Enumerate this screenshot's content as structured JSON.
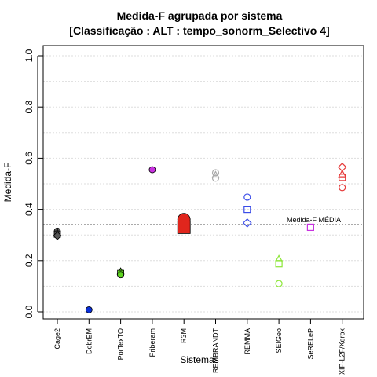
{
  "chart_data": {
    "type": "scatter",
    "title": [
      "Medida-F agrupada por sistema",
      "[Classificação : ALT : tempo_sonorm_Selectivo 4]"
    ],
    "xlabel": "Sistemas",
    "ylabel": "Medida-F",
    "ylim": [
      0,
      1
    ],
    "yticks": [
      "0.0",
      "0.2",
      "0.4",
      "0.6",
      "0.8",
      "1.0"
    ],
    "grid": true,
    "categories": [
      "Cage2",
      "DobrEM",
      "PorTexTO",
      "Priberam",
      "R3M",
      "REMBRANDT",
      "REMMA",
      "SEIGeo",
      "SeRELeP",
      "XIP-L2F/Xerox"
    ],
    "reference_line": {
      "value": 0.34,
      "label": "Medida-F MÉDIA"
    },
    "points": [
      {
        "category": "Cage2",
        "y": 0.315,
        "shape": "circle",
        "color": "#555555",
        "filled": true,
        "size": 4
      },
      {
        "category": "Cage2",
        "y": 0.307,
        "shape": "triangle",
        "color": "#555555",
        "filled": true,
        "size": 4
      },
      {
        "category": "Cage2",
        "y": 0.303,
        "shape": "square",
        "color": "#555555",
        "filled": true,
        "size": 4
      },
      {
        "category": "Cage2",
        "y": 0.297,
        "shape": "diamond",
        "color": "#555555",
        "filled": true,
        "size": 4
      },
      {
        "category": "DobrEM",
        "y": 0.008,
        "shape": "circle",
        "color": "#0a2fd6",
        "filled": true,
        "size": 4
      },
      {
        "category": "PorTexTO",
        "y": 0.157,
        "shape": "triangle",
        "color": "#5fd620",
        "filled": true,
        "size": 4
      },
      {
        "category": "PorTexTO",
        "y": 0.15,
        "shape": "square",
        "color": "#5fd620",
        "filled": true,
        "size": 4
      },
      {
        "category": "PorTexTO",
        "y": 0.145,
        "shape": "circle",
        "color": "#5fd620",
        "filled": true,
        "size": 4
      },
      {
        "category": "Priberam",
        "y": 0.555,
        "shape": "circle",
        "color": "#c832e0",
        "filled": true,
        "size": 4
      },
      {
        "category": "R3M",
        "y": 0.36,
        "shape": "circle",
        "color": "#e0261d",
        "filled": true,
        "size": 8
      },
      {
        "category": "R3M",
        "y": 0.33,
        "shape": "square",
        "color": "#e0261d",
        "filled": true,
        "size": 8
      },
      {
        "category": "REMBRANDT",
        "y": 0.543,
        "shape": "circle",
        "color": "#aaaaaa",
        "filled": false,
        "size": 4
      },
      {
        "category": "REMBRANDT",
        "y": 0.533,
        "shape": "triangle",
        "color": "#aaaaaa",
        "filled": false,
        "size": 4
      },
      {
        "category": "REMBRANDT",
        "y": 0.522,
        "shape": "circle",
        "color": "#aaaaaa",
        "filled": false,
        "size": 4
      },
      {
        "category": "REMMA",
        "y": 0.448,
        "shape": "circle",
        "color": "#3b4de8",
        "filled": false,
        "size": 4
      },
      {
        "category": "REMMA",
        "y": 0.4,
        "shape": "square",
        "color": "#3b4de8",
        "filled": false,
        "size": 4
      },
      {
        "category": "REMMA",
        "y": 0.347,
        "shape": "diamond",
        "color": "#3b4de8",
        "filled": false,
        "size": 4
      },
      {
        "category": "SEIGeo",
        "y": 0.205,
        "shape": "triangle",
        "color": "#8ce638",
        "filled": false,
        "size": 4
      },
      {
        "category": "SEIGeo",
        "y": 0.188,
        "shape": "square",
        "color": "#8ce638",
        "filled": false,
        "size": 4
      },
      {
        "category": "SEIGeo",
        "y": 0.11,
        "shape": "circle",
        "color": "#8ce638",
        "filled": false,
        "size": 4
      },
      {
        "category": "SeRELeP",
        "y": 0.33,
        "shape": "square",
        "color": "#c832e0",
        "filled": false,
        "size": 4
      },
      {
        "category": "XIP-L2F/Xerox",
        "y": 0.565,
        "shape": "diamond",
        "color": "#e63a3a",
        "filled": false,
        "size": 4
      },
      {
        "category": "XIP-L2F/Xerox",
        "y": 0.537,
        "shape": "triangle",
        "color": "#e63a3a",
        "filled": false,
        "size": 4
      },
      {
        "category": "XIP-L2F/Xerox",
        "y": 0.525,
        "shape": "square",
        "color": "#e63a3a",
        "filled": false,
        "size": 4
      },
      {
        "category": "XIP-L2F/Xerox",
        "y": 0.485,
        "shape": "circle",
        "color": "#e63a3a",
        "filled": false,
        "size": 4
      }
    ]
  }
}
